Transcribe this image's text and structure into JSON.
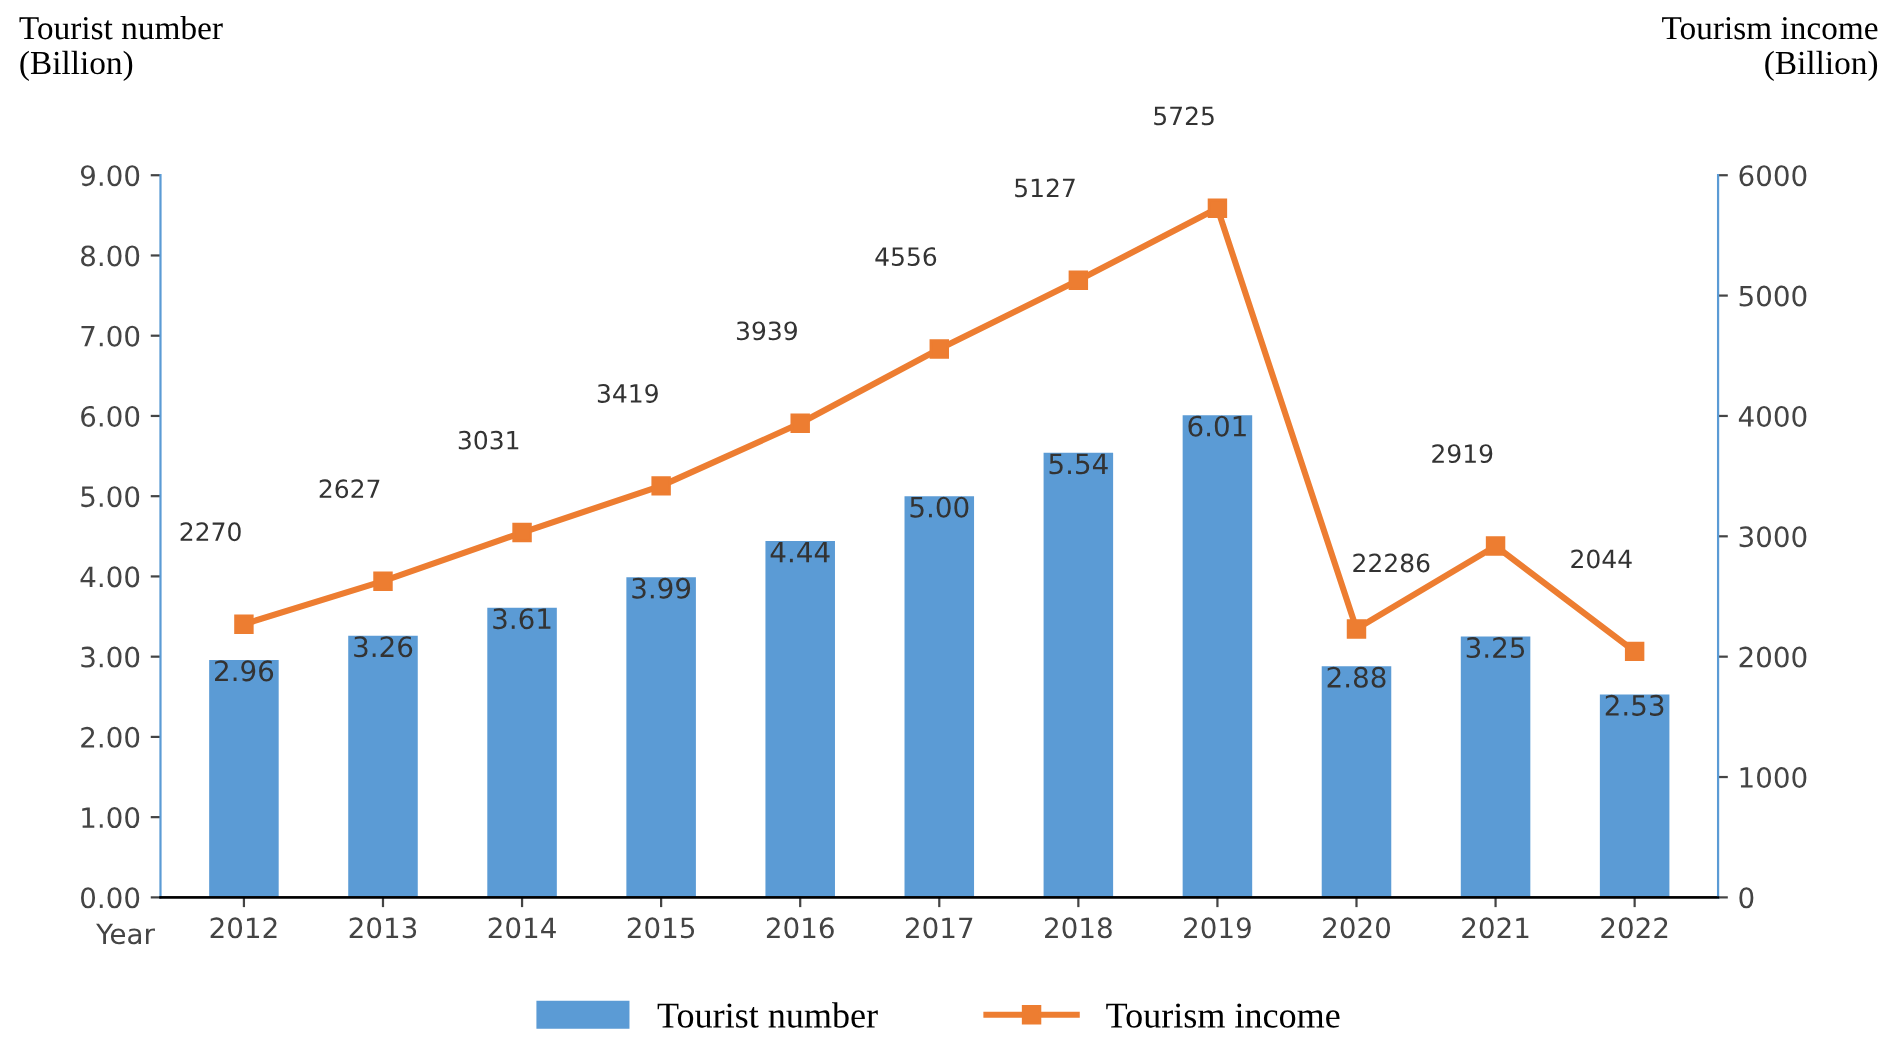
{
  "chart_data": {
    "type": "bar",
    "ylabel": "Tourist number\n(Billion)",
    "y2label": "Tourism income\n(Billion)",
    "categories": [
      "2012",
      "2013",
      "2014",
      "2015",
      "2016",
      "2017",
      "2018",
      "2019",
      "2020",
      "2021",
      "2022"
    ],
    "series": [
      {
        "name": "Tourist number",
        "color": "#5b9bd5",
        "values": [
          2.96,
          3.26,
          3.61,
          3.99,
          4.44,
          5.0,
          5.54,
          6.01,
          2.88,
          3.25,
          2.53
        ],
        "value_labels": [
          "2.96",
          "3.26",
          "3.61",
          "3.99",
          "4.44",
          "5.00",
          "5.54",
          "6.01",
          "2.88",
          "3.25",
          "2.53"
        ]
      },
      {
        "name": "Tourism income",
        "type": "line",
        "axis": "y2",
        "color": "#ed7d31",
        "marker": "square",
        "values": [
          2270,
          2627,
          3031,
          3419,
          3939,
          4556,
          5127,
          5725,
          2230,
          2919,
          2044
        ],
        "value_labels": [
          "2270",
          "2627",
          "3031",
          "3419",
          "3939",
          "4556",
          "5127",
          "5725",
          null,
          "2919",
          "2044"
        ]
      }
    ],
    "ylim": [
      0,
      9
    ],
    "yticks": [
      {
        "value": 0,
        "label": "0.00"
      },
      {
        "value": 1,
        "label": "1.00"
      },
      {
        "value": 2,
        "label": "2.00"
      },
      {
        "value": 3,
        "label": "3.00"
      },
      {
        "value": 4,
        "label": "4.00"
      },
      {
        "value": 5,
        "label": "5.00"
      },
      {
        "value": 6,
        "label": "6.00"
      },
      {
        "value": 7,
        "label": "7.00"
      },
      {
        "value": 8,
        "label": "8.00"
      },
      {
        "value": 9,
        "label": "9.00"
      }
    ],
    "y2lim": [
      0,
      6000
    ],
    "y2ticks": [
      0,
      1000,
      2000,
      3000,
      4000,
      5000,
      6000
    ],
    "annotations": [
      "Year",
      "22286"
    ],
    "legend": "bottom",
    "grid": false
  }
}
